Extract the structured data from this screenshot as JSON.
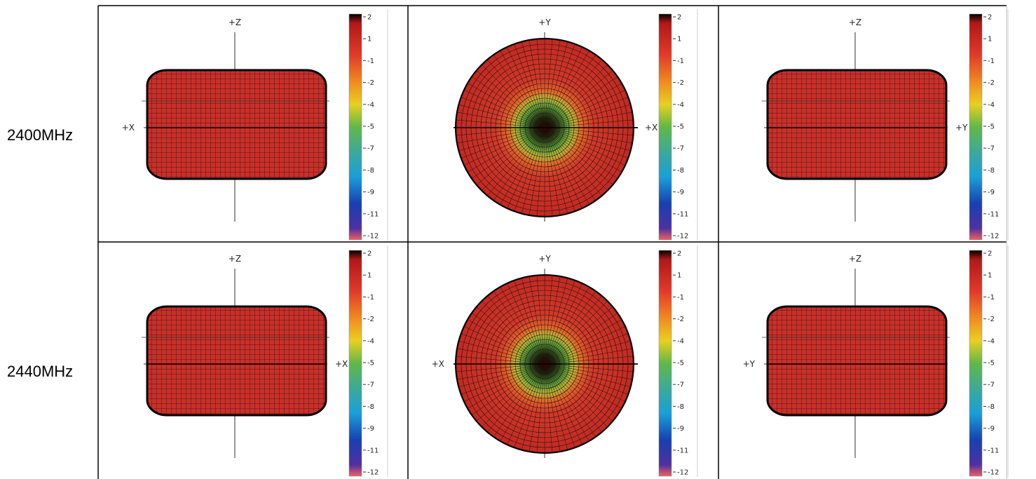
{
  "row_labels": [
    "2400MHz",
    "2440MHz"
  ],
  "colorbar": {
    "labels": [
      "2",
      "1",
      "-1",
      "-2",
      "-4",
      "-5",
      "-7",
      "-8",
      "-9",
      "-11",
      "-12"
    ]
  },
  "panels": [
    [
      {
        "view": "side",
        "top_label": "+Z",
        "side_label": "+X",
        "side": "left"
      },
      {
        "view": "top",
        "top_label": "+Y",
        "side_label": "+X",
        "side": "right"
      },
      {
        "view": "side",
        "top_label": "+Z",
        "side_label": "+Y",
        "side": "right"
      }
    ],
    [
      {
        "view": "side",
        "top_label": "+Z",
        "side_label": "+X",
        "side": "right"
      },
      {
        "view": "top",
        "top_label": "+Y",
        "side_label": "+X",
        "side": "left"
      },
      {
        "view": "side",
        "top_label": "+Z",
        "side_label": "+Y",
        "side": "left"
      }
    ]
  ]
}
